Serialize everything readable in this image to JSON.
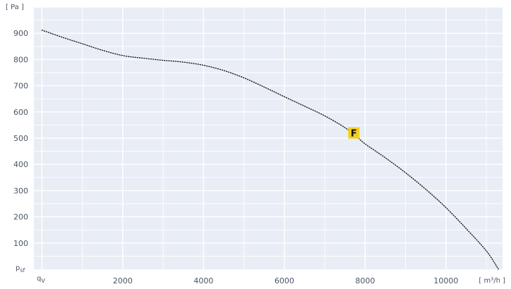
{
  "chart_data": {
    "type": "line",
    "title": "",
    "y_unit": "[ Pa ]",
    "x_unit": "[ m³/h ]",
    "y_symbol": "p",
    "y_symbol_sub": "sf",
    "x_symbol": "q",
    "x_symbol_sub": "V",
    "xlim": [
      -200,
      11400
    ],
    "ylim": [
      0,
      1000
    ],
    "x_ticks": [
      2000,
      4000,
      6000,
      8000,
      10000
    ],
    "y_ticks": [
      100,
      200,
      300,
      400,
      500,
      600,
      700,
      800,
      900
    ],
    "grid": true,
    "line_style": "dotted",
    "colors": {
      "plot_background": "#e9edf5",
      "grid": "#ffffff",
      "curve": "#1a1a1a",
      "marker": "#f2cf1a",
      "marker_text": "#111111"
    },
    "series": [
      {
        "x": [
          0,
          500,
          1000,
          1500,
          2000,
          2500,
          3000,
          3500,
          4000,
          4500,
          5000,
          5500,
          6000,
          6500,
          7000,
          7500,
          7800,
          8000,
          8500,
          9000,
          9500,
          10000,
          10500,
          11000,
          11300
        ],
        "y": [
          912,
          885,
          860,
          835,
          815,
          805,
          797,
          790,
          778,
          758,
          730,
          695,
          658,
          622,
          585,
          540,
          505,
          478,
          425,
          368,
          305,
          235,
          155,
          70,
          0
        ]
      }
    ],
    "annotations": [
      {
        "label": "F",
        "x": 7720,
        "y": 520
      }
    ]
  }
}
